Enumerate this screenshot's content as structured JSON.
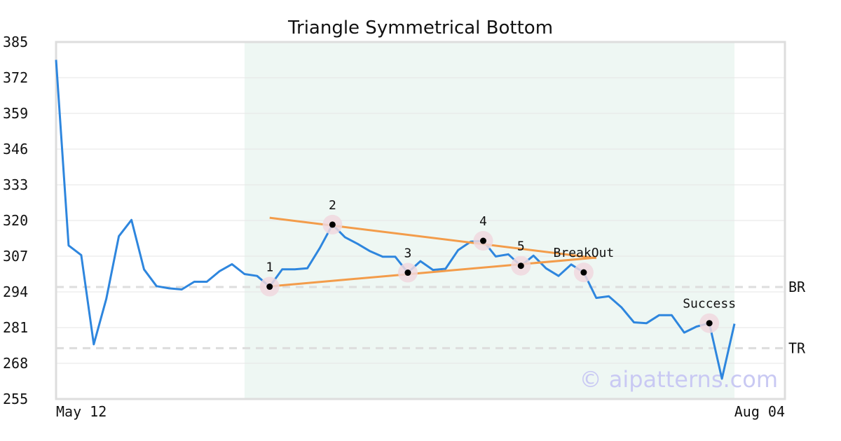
{
  "chart_data": {
    "type": "line",
    "title": "Triangle Symmetrical Bottom",
    "xlabel": "",
    "ylabel": "",
    "ylim": [
      255,
      385
    ],
    "y_ticks": [
      "385",
      "372",
      "359",
      "346",
      "333",
      "320",
      "307",
      "294",
      "281",
      "268",
      "255"
    ],
    "x_tick_labels": [
      "May 12",
      "Aug 04"
    ],
    "grid": true,
    "colors": {
      "line": "#2e86de",
      "trendline": "#f39c4a",
      "region": "#eef7f3",
      "marker_halo": "#f0d8de",
      "marker": "#000000",
      "reference_line": "#dddddd",
      "axes": "#dddddd"
    },
    "series": [
      {
        "values": [
          378.5,
          310.9,
          307.4,
          274.9,
          291.5,
          314.3,
          320.2,
          302.2,
          296.1,
          295.3,
          294.9,
          297.7,
          297.7,
          301.5,
          304.1,
          300.5,
          299.8,
          295.9,
          302.2,
          302.2,
          302.6,
          310.0,
          318.5,
          313.9,
          311.5,
          308.8,
          306.8,
          306.8,
          301.0,
          305.2,
          302.0,
          302.4,
          309.2,
          312.3,
          312.6,
          306.9,
          307.7,
          303.5,
          307.2,
          302.6,
          299.8,
          304.0,
          301.1,
          291.8,
          292.4,
          288.4,
          282.9,
          282.6,
          285.5,
          285.5,
          279.2,
          281.4,
          282.6,
          262.4,
          282.4
        ]
      }
    ],
    "highlight_region": {
      "start_index": 15,
      "end_index": 54
    },
    "trendlines": [
      {
        "name": "upper",
        "from": {
          "index": 17,
          "value": 321.0
        },
        "to": {
          "index": 43,
          "value": 306.3
        }
      },
      {
        "name": "lower",
        "from": {
          "index": 17,
          "value": 296.0
        },
        "to": {
          "index": 43,
          "value": 306.5
        }
      }
    ],
    "reference_lines": [
      {
        "label": "BR",
        "value": 295.8
      },
      {
        "label": "TR",
        "value": 273.5
      }
    ],
    "points": [
      {
        "label": "1",
        "index": 17,
        "value": 295.9
      },
      {
        "label": "2",
        "index": 22,
        "value": 318.5
      },
      {
        "label": "3",
        "index": 28,
        "value": 301.0
      },
      {
        "label": "4",
        "index": 34,
        "value": 312.6
      },
      {
        "label": "5",
        "index": 37,
        "value": 303.5
      },
      {
        "label": "BreakOut",
        "index": 42,
        "value": 301.1
      },
      {
        "label": "Success",
        "index": 52,
        "value": 282.6
      }
    ],
    "watermark": "© aipatterns.com"
  }
}
